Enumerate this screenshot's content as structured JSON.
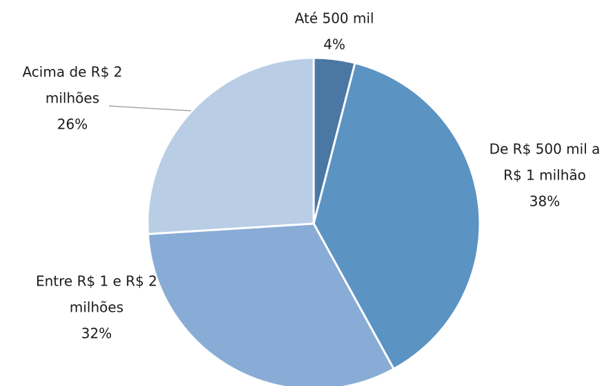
{
  "chart_data": {
    "type": "pie",
    "title": "",
    "unit": "%",
    "start_angle_deg": 0,
    "direction": "clockwise",
    "slices": [
      {
        "label_lines": [
          "Até 500 mil"
        ],
        "percent_label": "4%",
        "value": 4,
        "color": "#4a77a4"
      },
      {
        "label_lines": [
          "De R$ 500 mil a",
          "R$ 1 milhão"
        ],
        "percent_label": "38%",
        "value": 38,
        "color": "#5b93c3"
      },
      {
        "label_lines": [
          "Entre R$ 1 e R$ 2",
          "milhões"
        ],
        "percent_label": "32%",
        "value": 32,
        "color": "#88acd5"
      },
      {
        "label_lines": [
          "Acima de R$ 2",
          "milhões"
        ],
        "percent_label": "26%",
        "value": 26,
        "color": "#b9cde5"
      }
    ]
  }
}
